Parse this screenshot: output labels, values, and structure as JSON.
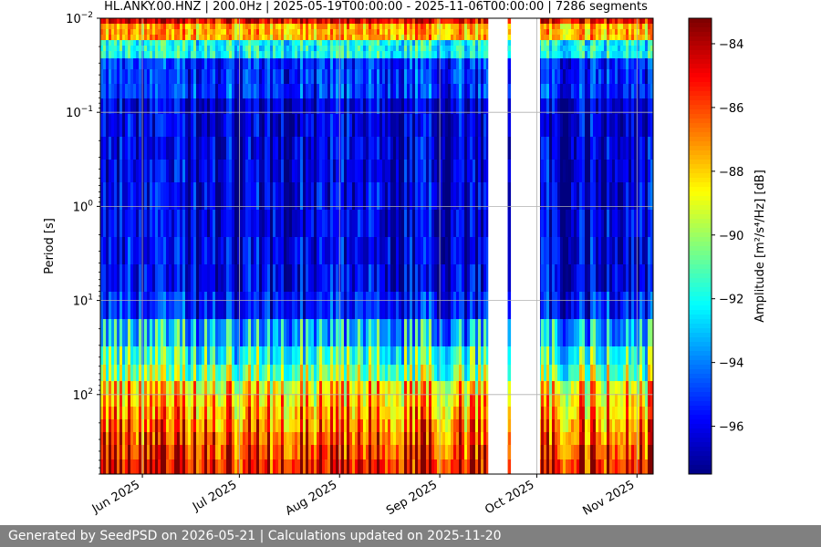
{
  "chart_data": {
    "type": "heatmap",
    "title": "HL.ANKY.00.HNZ | 200.0Hz | 2025-05-19T00:00:00 - 2025-11-06T00:00:00 | 7286 segments",
    "ylabel": "Period [s]",
    "yscale": "log",
    "yaxis_inverted": true,
    "ylim": [
      0.01,
      700
    ],
    "yticks": [
      {
        "value": 0.01,
        "base": "10",
        "exp": "−2"
      },
      {
        "value": 0.1,
        "base": "10",
        "exp": "−1"
      },
      {
        "value": 1,
        "base": "10",
        "exp": "0"
      },
      {
        "value": 10,
        "base": "10",
        "exp": "1"
      },
      {
        "value": 100,
        "base": "10",
        "exp": "2"
      }
    ],
    "xlim": [
      "2025-05-19",
      "2025-11-06"
    ],
    "xticks": [
      {
        "date": "2025-06-01",
        "label": "Jun 2025"
      },
      {
        "date": "2025-07-01",
        "label": "Jul 2025"
      },
      {
        "date": "2025-08-01",
        "label": "Aug 2025"
      },
      {
        "date": "2025-09-01",
        "label": "Sep 2025"
      },
      {
        "date": "2025-10-01",
        "label": "Oct 2025"
      },
      {
        "date": "2025-11-01",
        "label": "Nov 2025"
      }
    ],
    "grid": true,
    "data_gaps": [
      {
        "start": "2025-09-16",
        "end": "2025-09-22"
      },
      {
        "start": "2025-09-23",
        "end": "2025-10-02"
      }
    ],
    "colorbar": {
      "label": "Amplitude [m²/s⁴/Hz] [dB]",
      "colormap": "jet",
      "range": [
        -97.5,
        -83.2
      ],
      "ticks": [
        -84,
        -86,
        -88,
        -90,
        -92,
        -94,
        -96
      ],
      "tick_labels": [
        "−84",
        "−86",
        "−88",
        "−90",
        "−92",
        "−94",
        "−96"
      ]
    },
    "color_stops": [
      "#00007f",
      "#0000ff",
      "#007fff",
      "#00ffff",
      "#7fff7f",
      "#ffff00",
      "#ff7f00",
      "#ff0000",
      "#7f0000"
    ]
  },
  "footer": {
    "text": "Generated by SeedPSD on 2026-05-21 | Calculations updated on 2025-11-20"
  }
}
